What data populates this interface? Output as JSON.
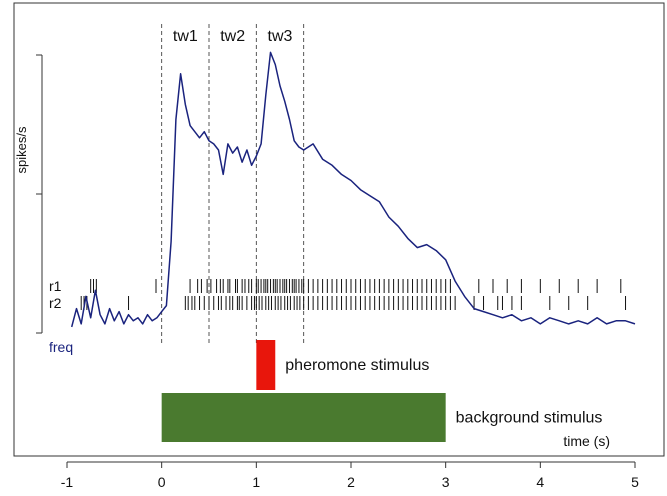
{
  "chart_data": {
    "type": "line",
    "ylabel": "spikes/s",
    "xlabel": "time (s)",
    "xlim": [
      -1,
      5
    ],
    "x_ticks": [
      -1,
      0,
      1,
      2,
      3,
      4,
      5
    ],
    "x_tick_labels": [
      "-1",
      "0",
      "1",
      "2",
      "3",
      "4",
      "5"
    ],
    "time_windows": [
      {
        "label": "tw1",
        "start": 0.0,
        "end": 0.5
      },
      {
        "label": "tw2",
        "start": 0.5,
        "end": 1.0
      },
      {
        "label": "tw3",
        "start": 1.0,
        "end": 1.5
      }
    ],
    "series": [
      {
        "name": "freq",
        "color": "#1a237e",
        "x": [
          -0.95,
          -0.9,
          -0.85,
          -0.8,
          -0.75,
          -0.7,
          -0.65,
          -0.6,
          -0.55,
          -0.5,
          -0.45,
          -0.4,
          -0.35,
          -0.3,
          -0.25,
          -0.2,
          -0.15,
          -0.1,
          -0.05,
          0.0,
          0.05,
          0.1,
          0.15,
          0.2,
          0.25,
          0.3,
          0.35,
          0.4,
          0.45,
          0.5,
          0.55,
          0.6,
          0.65,
          0.7,
          0.75,
          0.8,
          0.85,
          0.9,
          0.95,
          1.0,
          1.05,
          1.1,
          1.15,
          1.2,
          1.25,
          1.3,
          1.35,
          1.4,
          1.45,
          1.5,
          1.6,
          1.7,
          1.8,
          1.9,
          2.0,
          2.1,
          2.2,
          2.3,
          2.4,
          2.5,
          2.6,
          2.7,
          2.8,
          2.9,
          3.0,
          3.1,
          3.2,
          3.3,
          3.4,
          3.5,
          3.6,
          3.7,
          3.8,
          3.9,
          4.0,
          4.1,
          4.2,
          4.3,
          4.4,
          4.5,
          4.6,
          4.7,
          4.8,
          4.9,
          5.0
        ],
        "values": [
          2,
          8,
          3,
          12,
          5,
          14,
          6,
          3,
          8,
          4,
          7,
          3,
          6,
          4,
          5,
          3,
          6,
          4,
          5,
          7,
          9,
          30,
          70,
          85,
          75,
          68,
          66,
          64,
          66,
          63,
          62,
          60,
          52,
          62,
          59,
          61,
          56,
          60,
          55,
          58,
          62,
          78,
          92,
          88,
          81,
          76,
          70,
          63,
          61,
          60,
          62,
          57,
          55,
          52,
          50,
          47,
          45,
          43,
          38,
          35,
          31,
          28,
          29,
          27,
          24,
          17,
          12,
          8,
          7,
          6,
          5,
          6,
          4,
          5,
          3,
          5,
          4,
          3,
          4,
          3,
          5,
          3,
          4,
          4,
          3
        ],
        "ylim": [
          0,
          100
        ]
      }
    ],
    "raster": [
      {
        "label": "r1",
        "ticks": [
          -0.75,
          -0.72,
          -0.69,
          -0.06,
          0.3,
          0.38,
          0.42,
          0.48,
          0.52,
          0.58,
          0.62,
          0.65,
          0.7,
          0.72,
          0.78,
          0.8,
          0.85,
          0.88,
          0.92,
          0.95,
          1.0,
          1.02,
          1.05,
          1.08,
          1.1,
          1.12,
          1.15,
          1.18,
          1.2,
          1.22,
          1.25,
          1.28,
          1.3,
          1.32,
          1.35,
          1.38,
          1.4,
          1.42,
          1.45,
          1.48,
          1.5,
          1.55,
          1.6,
          1.65,
          1.7,
          1.75,
          1.8,
          1.85,
          1.9,
          1.95,
          2.0,
          2.05,
          2.1,
          2.15,
          2.2,
          2.25,
          2.3,
          2.35,
          2.4,
          2.45,
          2.5,
          2.55,
          2.6,
          2.65,
          2.7,
          2.75,
          2.8,
          2.85,
          2.9,
          2.95,
          3.0,
          3.05,
          3.35,
          3.5,
          3.65,
          3.8,
          4.0,
          4.2,
          4.4,
          4.6,
          4.85
        ]
      },
      {
        "label": "r2",
        "ticks": [
          -0.85,
          -0.82,
          -0.79,
          -0.35,
          0.25,
          0.28,
          0.32,
          0.35,
          0.4,
          0.45,
          0.5,
          0.55,
          0.6,
          0.63,
          0.68,
          0.72,
          0.75,
          0.8,
          0.82,
          0.85,
          0.9,
          0.95,
          0.98,
          1.0,
          1.03,
          1.06,
          1.1,
          1.13,
          1.16,
          1.2,
          1.23,
          1.26,
          1.3,
          1.33,
          1.36,
          1.4,
          1.43,
          1.46,
          1.5,
          1.55,
          1.6,
          1.65,
          1.7,
          1.75,
          1.8,
          1.85,
          1.9,
          1.95,
          2.0,
          2.05,
          2.1,
          2.15,
          2.2,
          2.25,
          2.3,
          2.35,
          2.4,
          2.45,
          2.5,
          2.55,
          2.6,
          2.65,
          2.7,
          2.75,
          2.8,
          2.85,
          2.9,
          2.95,
          3.0,
          3.05,
          3.1,
          3.3,
          3.4,
          3.55,
          3.6,
          3.7,
          3.8,
          4.1,
          4.3,
          4.5,
          4.9
        ]
      }
    ],
    "stimuli": [
      {
        "label": "pheromone stimulus",
        "start": 1.0,
        "end": 1.2,
        "color": "#e8160c"
      },
      {
        "label": "background stimulus",
        "start": 0.0,
        "end": 3.0,
        "color": "#4a7a2f"
      }
    ],
    "grid": false,
    "legend": "none"
  }
}
